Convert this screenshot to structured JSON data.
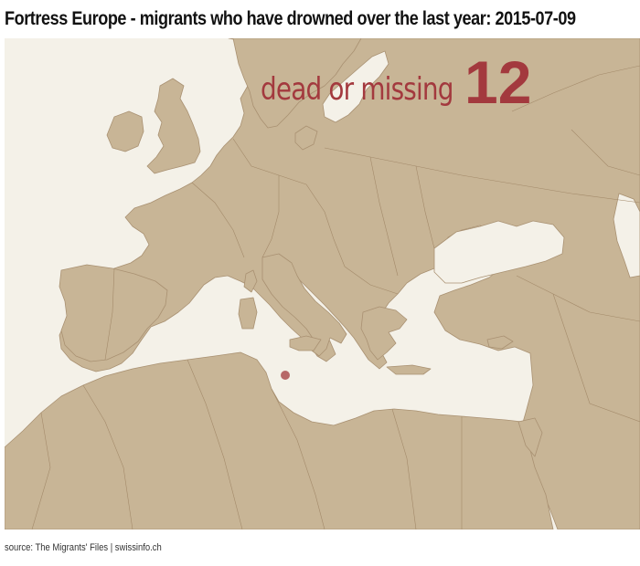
{
  "title": "Fortress Europe - migrants who have drowned over the last year: 2015-07-09",
  "counter": {
    "label": "dead or missing",
    "value": "12"
  },
  "source": "source: The Migrants' Files | swissinfo.ch",
  "map": {
    "region": "Europe and Mediterranean",
    "colors": {
      "sea": "#f4f1e8",
      "land": "#c8b596",
      "border": "#a38a6a",
      "marker": "#a3393e"
    },
    "incidents": [
      {
        "lat": 35.3,
        "lon": 12.6,
        "dead_or_missing": 12
      }
    ]
  }
}
